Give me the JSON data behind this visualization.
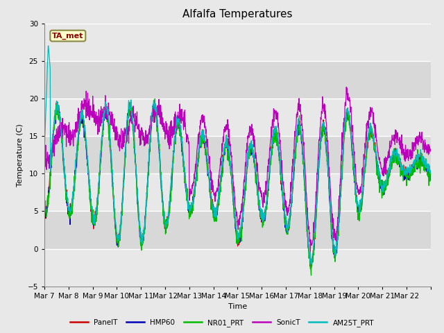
{
  "title": "Alfalfa Temperatures",
  "xlabel": "Time",
  "ylabel": "Temperature (C)",
  "ylim": [
    -5,
    30
  ],
  "annotation": "TA_met",
  "series_names": [
    "PanelT",
    "HMP60",
    "NR01_PRT",
    "SonicT",
    "AM25T_PRT"
  ],
  "series_colors": [
    "#cc0000",
    "#0000bb",
    "#00bb00",
    "#bb00bb",
    "#00bbbb"
  ],
  "xtick_labels": [
    "Mar 7",
    "Mar 8",
    "Mar 9",
    "Mar 10",
    "Mar 11",
    "Mar 12",
    "Mar 13",
    "Mar 14",
    "Mar 15",
    "Mar 16",
    "Mar 17",
    "Mar 18",
    "Mar 19",
    "Mar 20",
    "Mar 21",
    "Mar 22"
  ],
  "n_days": 16,
  "pts_per_day": 96,
  "background_color": "#e8e8e8",
  "plot_bg_light": "#e8e8e8",
  "plot_bg_dark": "#d8d8d8",
  "grid_color": "#ffffff",
  "title_fontsize": 11,
  "label_fontsize": 8,
  "tick_fontsize": 7.5
}
